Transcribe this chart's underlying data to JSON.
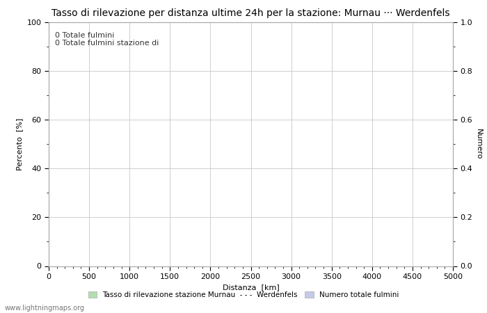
{
  "title": "Tasso di rilevazione per distanza ultime 24h per la stazione: Murnau ··· Werdenfels",
  "xlabel": "Distanza  [km]",
  "ylabel_left": "Percento  [%]",
  "ylabel_right": "Numero",
  "xlim": [
    0,
    5000
  ],
  "ylim_left": [
    0,
    100
  ],
  "ylim_right": [
    0.0,
    1.0
  ],
  "xticks": [
    0,
    500,
    1000,
    1500,
    2000,
    2500,
    3000,
    3500,
    4000,
    4500,
    5000
  ],
  "yticks_left": [
    0,
    20,
    40,
    60,
    80,
    100
  ],
  "yticks_right": [
    0.0,
    0.2,
    0.4,
    0.6,
    0.8,
    1.0
  ],
  "annotation_line1": "0 Totale fulmini",
  "annotation_line2": "0 Totale fulmini stazione di",
  "legend_label1": "Tasso di rilevazione stazione Murnau  - - -  Werdenfels",
  "legend_label2": "Numero totale fulmini",
  "legend_color1": "#b2dfb0",
  "legend_color2": "#c5cae9",
  "watermark": "www.lightningmaps.org",
  "background_color": "#ffffff",
  "grid_color": "#c8c8c8",
  "title_fontsize": 10,
  "axis_fontsize": 8,
  "tick_fontsize": 8,
  "annotation_fontsize": 8
}
